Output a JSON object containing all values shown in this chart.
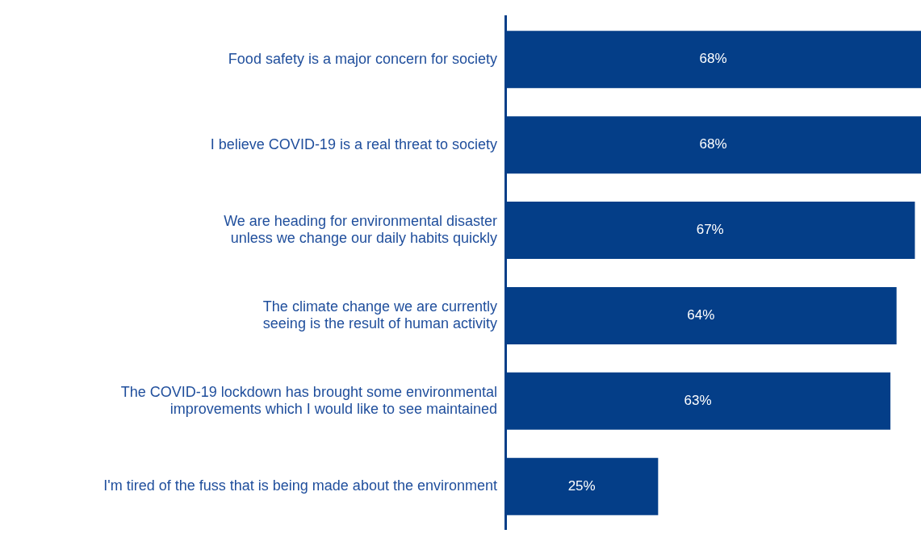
{
  "chart_data": {
    "type": "bar",
    "orientation": "horizontal",
    "categories": [
      "Food safety is a major concern for society",
      "I believe COVID-19 is a real threat to society",
      "We are heading for environmental disaster unless we change our daily habits quickly",
      "The climate change we are currently seeing is the result of human activity",
      "The COVID-19 lockdown has brought some environmental improvements which I would like to see maintained",
      "I'm tired of the fuss that is being made about the environment"
    ],
    "values": [
      68,
      68,
      67,
      64,
      63,
      25
    ],
    "value_labels": [
      "68%",
      "68%",
      "67%",
      "64%",
      "63%",
      "25%"
    ],
    "color": "#043e88",
    "xlim": [
      0,
      68
    ],
    "tick_labels": "y",
    "grid": false,
    "legend": false
  }
}
